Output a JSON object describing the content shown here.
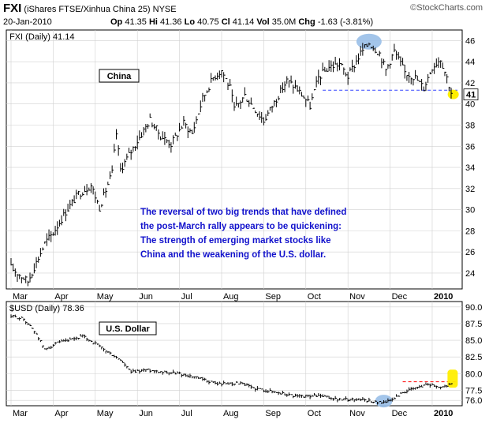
{
  "header": {
    "symbol": "FXI",
    "name": "(iShares FTSE/Xinhua China 25)",
    "exchange": "NYSE",
    "date": "20-Jan-2010",
    "quote": {
      "open_label": "Op",
      "open": "41.35",
      "high_label": "Hi",
      "high": "41.36",
      "low_label": "Lo",
      "low": "40.75",
      "close_label": "Cl",
      "close": "41.14",
      "volume_label": "Vol",
      "volume": "35.0M",
      "change_label": "Chg",
      "change": "-1.63 (-3.81%)"
    },
    "brand": "©StockCharts.com"
  },
  "colors": {
    "price_bars": "#000000",
    "annotation_text": "#1111cc",
    "support_line": "#3344ff",
    "highlight_blue": "#99bfe8",
    "highlight_yellow": "#ffee00",
    "resistance_line": "#ff2222",
    "grid": "#d0d0d0"
  },
  "chart_data": [
    {
      "type": "ohlc",
      "id": "fxi",
      "title": "FXI (Daily) 41.14",
      "label_box": "China",
      "ylim": [
        22.5,
        47
      ],
      "yticks": [
        24,
        26,
        28,
        30,
        32,
        34,
        36,
        38,
        40,
        42,
        44,
        46
      ],
      "xticks": [
        "Mar",
        "Apr",
        "May",
        "Jun",
        "Jul",
        "Aug",
        "Sep",
        "Oct",
        "Nov",
        "Dec",
        "2010"
      ],
      "last_value": "41",
      "support_level": 41.3,
      "series": [
        {
          "t": 0,
          "v": 24.5
        },
        {
          "t": 0.4,
          "v": 23.2
        },
        {
          "t": 0.8,
          "v": 26.8
        },
        {
          "t": 1.0,
          "v": 27.8
        },
        {
          "t": 1.3,
          "v": 29.8
        },
        {
          "t": 1.6,
          "v": 31.5
        },
        {
          "t": 1.9,
          "v": 32.3
        },
        {
          "t": 2.1,
          "v": 30.2
        },
        {
          "t": 2.4,
          "v": 33.5
        },
        {
          "t": 2.5,
          "v": 37.2
        },
        {
          "t": 2.6,
          "v": 33.8
        },
        {
          "t": 2.85,
          "v": 35.5
        },
        {
          "t": 3.0,
          "v": 36.5
        },
        {
          "t": 3.3,
          "v": 38.5
        },
        {
          "t": 3.55,
          "v": 37.0
        },
        {
          "t": 3.8,
          "v": 36.2
        },
        {
          "t": 4.1,
          "v": 38.2
        },
        {
          "t": 4.3,
          "v": 37.2
        },
        {
          "t": 4.55,
          "v": 40.5
        },
        {
          "t": 4.8,
          "v": 42.5
        },
        {
          "t": 5.0,
          "v": 43.2
        },
        {
          "t": 5.2,
          "v": 41.5
        },
        {
          "t": 5.3,
          "v": 39.5
        },
        {
          "t": 5.55,
          "v": 40.8
        },
        {
          "t": 5.85,
          "v": 39.2
        },
        {
          "t": 6.0,
          "v": 38.4
        },
        {
          "t": 6.3,
          "v": 40.5
        },
        {
          "t": 6.55,
          "v": 42.2
        },
        {
          "t": 6.75,
          "v": 41.6
        },
        {
          "t": 7.0,
          "v": 40.4
        },
        {
          "t": 7.1,
          "v": 39.8
        },
        {
          "t": 7.3,
          "v": 42.5
        },
        {
          "t": 7.55,
          "v": 43.5
        },
        {
          "t": 7.8,
          "v": 43.8
        },
        {
          "t": 8.0,
          "v": 42.6
        },
        {
          "t": 8.3,
          "v": 44.8
        },
        {
          "t": 8.5,
          "v": 45.8
        },
        {
          "t": 8.75,
          "v": 44.8
        },
        {
          "t": 8.9,
          "v": 43.2
        },
        {
          "t": 9.1,
          "v": 45.0
        },
        {
          "t": 9.35,
          "v": 43.0
        },
        {
          "t": 9.6,
          "v": 42.5
        },
        {
          "t": 9.8,
          "v": 41.5
        },
        {
          "t": 10.0,
          "v": 43.5
        },
        {
          "t": 10.2,
          "v": 44.3
        },
        {
          "t": 10.35,
          "v": 42.5
        },
        {
          "t": 10.45,
          "v": 41.1
        }
      ]
    },
    {
      "type": "ohlc",
      "id": "usd",
      "title": "$USD (Daily) 78.36",
      "label_box": "U.S. Dollar",
      "ylim": [
        75.2,
        90.8
      ],
      "yticks": [
        "90.0",
        "87.5",
        "85.0",
        "82.5",
        "80.0",
        "77.5",
        "76.0"
      ],
      "ytick_values": [
        90.0,
        87.5,
        85.0,
        82.5,
        80.0,
        77.5,
        76.0
      ],
      "xticks": [
        "Mar",
        "Apr",
        "May",
        "Jun",
        "Jul",
        "Aug",
        "Sep",
        "Oct",
        "Nov",
        "Dec",
        "2010"
      ],
      "resistance_level": 78.8,
      "series": [
        {
          "t": 0,
          "v": 88.6
        },
        {
          "t": 0.3,
          "v": 88.2
        },
        {
          "t": 0.6,
          "v": 86.0
        },
        {
          "t": 0.8,
          "v": 83.6
        },
        {
          "t": 1.1,
          "v": 84.6
        },
        {
          "t": 1.4,
          "v": 85.0
        },
        {
          "t": 1.7,
          "v": 85.6
        },
        {
          "t": 2.0,
          "v": 84.5
        },
        {
          "t": 2.3,
          "v": 83.2
        },
        {
          "t": 2.6,
          "v": 82.0
        },
        {
          "t": 2.85,
          "v": 80.2
        },
        {
          "t": 3.2,
          "v": 80.6
        },
        {
          "t": 3.6,
          "v": 80.3
        },
        {
          "t": 4.0,
          "v": 80.0
        },
        {
          "t": 4.4,
          "v": 79.4
        },
        {
          "t": 4.9,
          "v": 78.5
        },
        {
          "t": 5.4,
          "v": 78.6
        },
        {
          "t": 5.8,
          "v": 77.8
        },
        {
          "t": 6.3,
          "v": 77.2
        },
        {
          "t": 6.8,
          "v": 76.6
        },
        {
          "t": 7.3,
          "v": 76.7
        },
        {
          "t": 7.8,
          "v": 76.1
        },
        {
          "t": 8.3,
          "v": 76.2
        },
        {
          "t": 8.7,
          "v": 75.7
        },
        {
          "t": 9.0,
          "v": 75.9
        },
        {
          "t": 9.3,
          "v": 77.2
        },
        {
          "t": 9.6,
          "v": 77.8
        },
        {
          "t": 9.9,
          "v": 78.5
        },
        {
          "t": 10.2,
          "v": 78.0
        },
        {
          "t": 10.45,
          "v": 78.4
        }
      ]
    }
  ],
  "annotation": {
    "line1": "The reversal of two big trends that have defined",
    "line2": "the post-March rally appears to be quickening:",
    "line3": "The strength of emerging market stocks like",
    "line4": "China and the weakening of the U.S. dollar."
  }
}
